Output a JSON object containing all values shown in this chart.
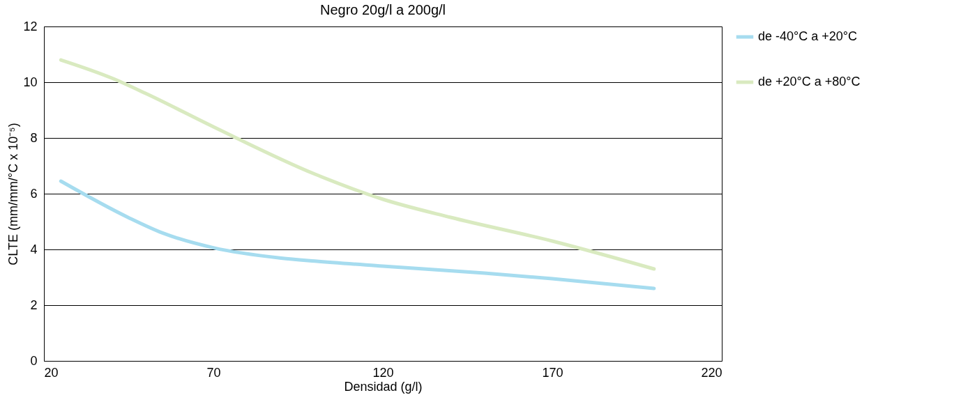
{
  "chart_data": {
    "type": "line",
    "title": "Negro 20g/l a 200g/l",
    "xlabel": "Densidad (g/l)",
    "ylabel": "CLTE (mm/mm/°C x 10⁻⁵)",
    "xlim": [
      20,
      220
    ],
    "xticks": [
      20,
      70,
      120,
      170,
      220
    ],
    "ylim": [
      0,
      12
    ],
    "yticks": [
      0,
      2,
      4,
      6,
      8,
      10,
      12
    ],
    "grid": "y",
    "legend": "right",
    "marker": "none",
    "line_style": "solid",
    "series": [
      {
        "name": "de -40°C a +20°C",
        "color": "#a6dcef",
        "x": [
          25,
          45,
          55,
          70,
          90,
          100,
          120,
          150,
          170,
          200
        ],
        "values": [
          6.45,
          5.14,
          4.59,
          4.06,
          3.69,
          3.58,
          3.4,
          3.15,
          2.95,
          2.6
        ]
      },
      {
        "name": "de +20°C a +80°C",
        "color": "#d9eac0",
        "x": [
          25,
          40,
          50,
          70,
          100,
          120,
          140,
          170,
          200
        ],
        "values": [
          10.8,
          10.15,
          9.6,
          8.4,
          6.7,
          5.8,
          5.15,
          4.3,
          3.3
        ]
      }
    ]
  }
}
